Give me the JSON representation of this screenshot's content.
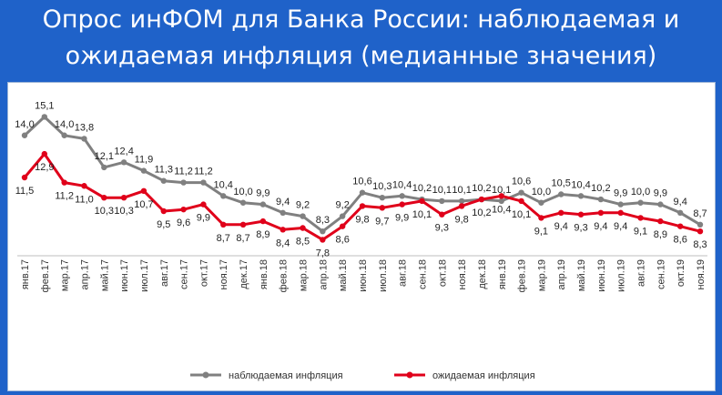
{
  "title_line1": "Опрос инФОМ для Банка России: наблюдаемая и",
  "title_line2": "ожидаемая инфляция (медианные значения)",
  "colors": {
    "header_bg": "#1f62c9",
    "observed": "#808080",
    "expected": "#e0001a"
  },
  "chart_data": {
    "type": "line",
    "categories": [
      "янв.17",
      "фев.17",
      "мар.17",
      "апр.17",
      "май.17",
      "июн.17",
      "июл.17",
      "авг.17",
      "сен.17",
      "окт.17",
      "ноя.17",
      "дек.17",
      "янв.18",
      "фев.18",
      "мар.18",
      "апр.18",
      "май.18",
      "июн.18",
      "июл.18",
      "авг.18",
      "сен.18",
      "окт.18",
      "ноя.18",
      "дек.18",
      "янв.19",
      "фев.19",
      "мар.19",
      "апр.19",
      "май.19",
      "июн.19",
      "июл.19",
      "авг.19",
      "сен.19",
      "окт.19",
      "ноя.19"
    ],
    "series": [
      {
        "name": "наблюдаемая инфляция",
        "values": [
          14.0,
          15.1,
          14.0,
          13.8,
          12.1,
          12.4,
          11.9,
          11.3,
          11.2,
          11.2,
          10.4,
          10.0,
          9.9,
          9.4,
          9.2,
          8.3,
          9.2,
          10.6,
          10.3,
          10.4,
          10.2,
          10.1,
          10.1,
          10.2,
          10.1,
          10.6,
          10.0,
          10.5,
          10.4,
          10.2,
          9.9,
          10.0,
          9.9,
          9.4,
          8.7
        ]
      },
      {
        "name": "ожидаемая инфляция",
        "values": [
          11.5,
          12.9,
          11.2,
          11.0,
          10.3,
          10.3,
          10.7,
          9.5,
          9.6,
          9.9,
          8.7,
          8.7,
          8.9,
          8.4,
          8.5,
          7.8,
          8.6,
          9.8,
          9.7,
          9.9,
          10.1,
          9.3,
          9.8,
          10.2,
          10.4,
          10.1,
          9.1,
          9.4,
          9.3,
          9.4,
          9.4,
          9.1,
          8.9,
          8.6,
          8.3
        ]
      }
    ],
    "observed_labels": [
      "14,0",
      "15,1",
      "14,0",
      "13,8",
      "12,1",
      "12,4",
      "11,9",
      "11,3",
      "11,2",
      "11,2",
      "10,4",
      "10,0",
      "9,9",
      "9,4",
      "9,2",
      "8,3",
      "9,2",
      "10,6",
      "10,3",
      "10,4",
      "10,2",
      "10,1",
      "10,1",
      "10,2",
      "10,1",
      "10,6",
      "10,0",
      "10,5",
      "10,4",
      "10,2",
      "9,9",
      "10,0",
      "9,9",
      "9,4",
      "8,7"
    ],
    "expected_labels": [
      "11,5",
      "12,9",
      "11,2",
      "11,0",
      "10,3",
      "10,3",
      "10,7",
      "9,5",
      "9,6",
      "9,9",
      "8,7",
      "8,7",
      "8,9",
      "8,4",
      "8,5",
      "7,8",
      "8,6",
      "9,8",
      "9,7",
      "9,9",
      "10,1",
      "9,3",
      "9,8",
      "10,2",
      "10,4",
      "10,1",
      "9,1",
      "9,4",
      "9,3",
      "9,4",
      "9,4",
      "9,1",
      "8,9",
      "8,6",
      "8,3"
    ],
    "ylim": [
      7.5,
      15.5
    ],
    "grid": false,
    "legend_position": "bottom"
  }
}
